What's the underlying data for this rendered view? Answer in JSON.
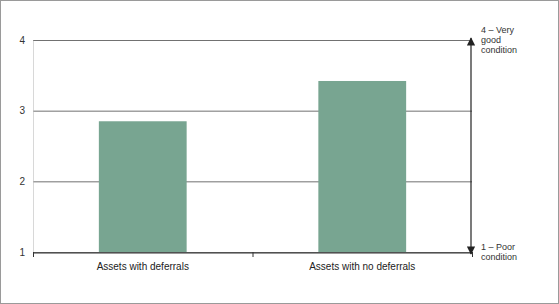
{
  "chart_data": {
    "type": "bar",
    "categories": [
      "Assets with deferrals",
      "Assets with no deferrals"
    ],
    "values": [
      2.85,
      3.42
    ],
    "color": "#78a591",
    "ylim": [
      1,
      4
    ],
    "yticks": [
      1,
      2,
      3,
      4
    ],
    "grid": true,
    "annotations": [
      {
        "text": "4 – Very good condition",
        "y": 4
      },
      {
        "text": "1 – Poor condition",
        "y": 1
      }
    ]
  }
}
